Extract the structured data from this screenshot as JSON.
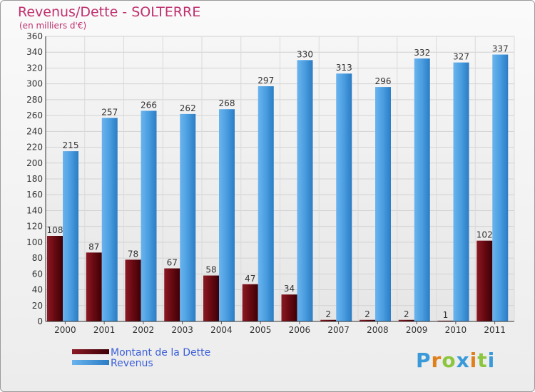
{
  "header": {
    "title": "Revenus/Dette - SOLTERRE",
    "subtitle": "(en milliers d'€)"
  },
  "logo": {
    "text": "Proxiti",
    "letter_colors": [
      "#3a9ad9",
      "#e0801c",
      "#8cc63f",
      "#3a9ad9",
      "#e0801c",
      "#8cc63f",
      "#3a9ad9"
    ]
  },
  "colors": {
    "dette": "#6b0a12",
    "revenus": "#4a9de0",
    "title": "#c0306e",
    "legend_text": "#3b5fd8"
  },
  "chart_data": {
    "type": "bar",
    "categories": [
      "2000",
      "2001",
      "2002",
      "2003",
      "2004",
      "2005",
      "2006",
      "2007",
      "2008",
      "2009",
      "2010",
      "2011"
    ],
    "series": [
      {
        "name": "Montant de la Dette",
        "values": [
          108,
          87,
          78,
          67,
          58,
          47,
          34,
          2,
          2,
          2,
          1,
          102
        ]
      },
      {
        "name": "Revenus",
        "values": [
          215,
          257,
          266,
          262,
          268,
          297,
          330,
          313,
          296,
          332,
          327,
          337
        ]
      }
    ],
    "ylim": [
      0,
      360
    ],
    "ytick_step": 20,
    "grid": true,
    "legend_position": "bottom-left"
  }
}
